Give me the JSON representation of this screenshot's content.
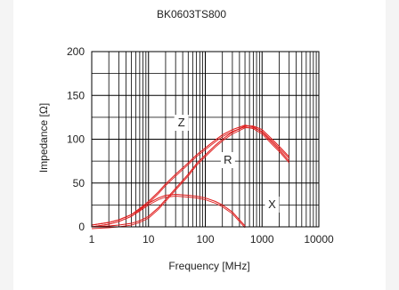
{
  "chart_data": {
    "type": "line",
    "title": "BK0603TS800",
    "xlabel": "Frequency [MHz]",
    "ylabel": "Impedance [Ω]",
    "x_scale": "log",
    "xlim": [
      1,
      10000
    ],
    "ylim": [
      0,
      200
    ],
    "x_ticks": [
      "1",
      "10",
      "100",
      "1000",
      "10000"
    ],
    "y_ticks": [
      "0",
      "50",
      "100",
      "150",
      "200"
    ],
    "grid": true,
    "series_labels": [
      "Z",
      "R",
      "X"
    ],
    "series": [
      {
        "name": "Z",
        "color": "#e02020",
        "x": [
          1,
          2,
          3,
          5,
          7,
          10,
          15,
          20,
          30,
          50,
          70,
          100,
          150,
          200,
          300,
          500,
          700,
          1000,
          1500,
          2000,
          3000
        ],
        "y": [
          2,
          5,
          8,
          14,
          21,
          29,
          40,
          49,
          60,
          73,
          82,
          90,
          99,
          105,
          111,
          116,
          114,
          108,
          96,
          88,
          75
        ]
      },
      {
        "name": "R",
        "color": "#e02020",
        "x": [
          1,
          2,
          3,
          5,
          7,
          10,
          15,
          20,
          30,
          50,
          70,
          100,
          150,
          200,
          300,
          500,
          700,
          1000,
          1500,
          2000,
          3000
        ],
        "y": [
          0,
          1,
          2,
          4,
          7,
          12,
          22,
          31,
          44,
          60,
          72,
          82,
          93,
          100,
          108,
          115,
          115,
          111,
          100,
          92,
          80
        ]
      },
      {
        "name": "X",
        "color": "#e02020",
        "x": [
          1,
          2,
          3,
          5,
          7,
          10,
          15,
          20,
          30,
          50,
          70,
          100,
          150,
          200,
          300,
          400,
          500
        ],
        "y": [
          2,
          5,
          8,
          14,
          20,
          27,
          33,
          36,
          37,
          36,
          35,
          33,
          29,
          25,
          17,
          8,
          1
        ]
      }
    ]
  }
}
